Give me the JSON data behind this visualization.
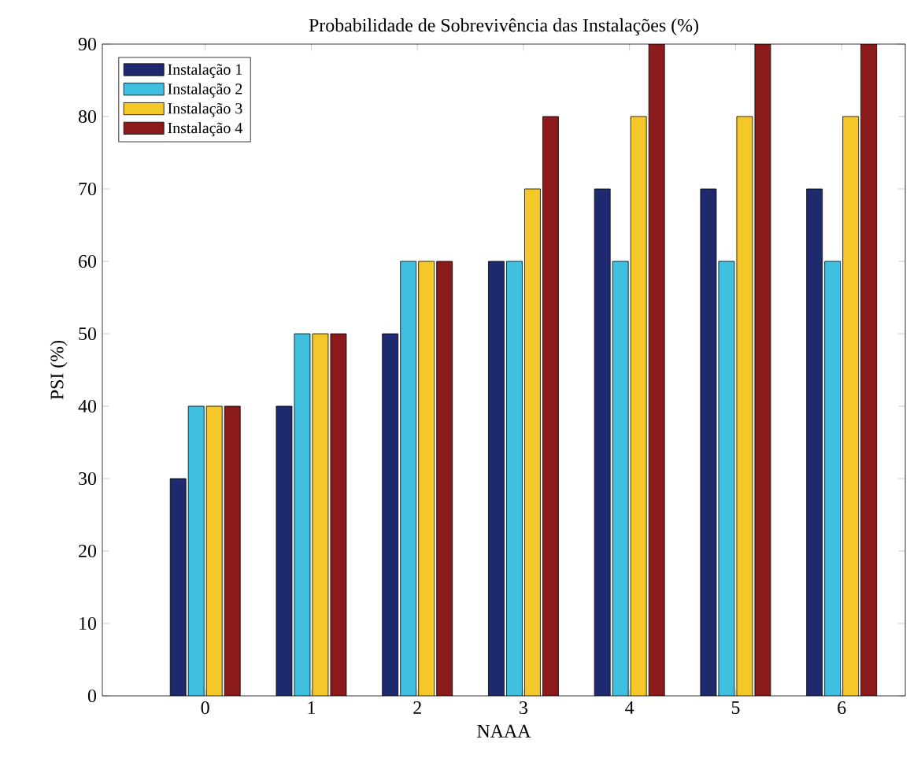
{
  "chart_data": {
    "type": "bar",
    "title": "Probabilidade de Sobrevivência das Instalações (%)",
    "xlabel": "NAAA",
    "ylabel": "PSI (%)",
    "categories": [
      "0",
      "1",
      "2",
      "3",
      "4",
      "5",
      "6"
    ],
    "series": [
      {
        "name": "Instalação 1",
        "color": "#1f2a6e",
        "values": [
          30,
          40,
          50,
          60,
          70,
          70,
          70
        ]
      },
      {
        "name": "Instalação 2",
        "color": "#40c0e0",
        "values": [
          40,
          50,
          60,
          60,
          60,
          60,
          60
        ]
      },
      {
        "name": "Instalação 3",
        "color": "#f5c82a",
        "values": [
          40,
          50,
          60,
          70,
          80,
          80,
          80
        ]
      },
      {
        "name": "Instalação 4",
        "color": "#8b1a1a",
        "values": [
          40,
          50,
          60,
          80,
          90,
          90,
          90
        ]
      }
    ],
    "ylim": [
      0,
      90
    ],
    "yticks": [
      0,
      10,
      20,
      30,
      40,
      50,
      60,
      70,
      80,
      90
    ],
    "grid": false,
    "legend": "top left"
  }
}
